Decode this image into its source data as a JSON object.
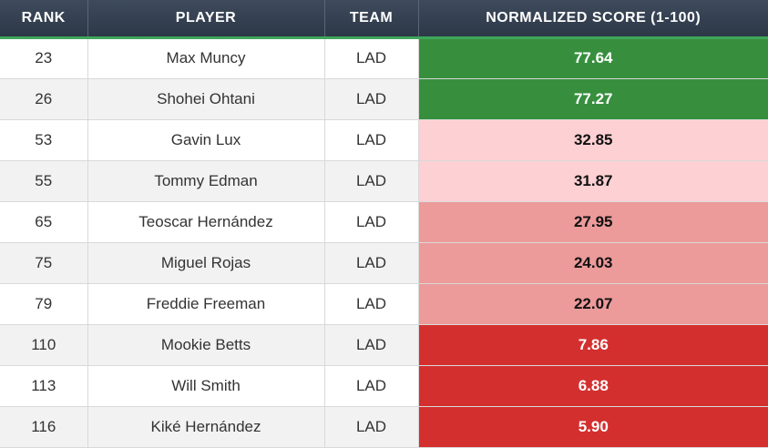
{
  "headers": {
    "rank": "RANK",
    "player": "PLAYER",
    "team": "TEAM",
    "score": "NORMALIZED SCORE (1-100)"
  },
  "tier_colors": {
    "green": "#378f3e",
    "lightpink": "#fdd0d3",
    "pink": "#ec9a9a",
    "red": "#d42f2f"
  },
  "rows": [
    {
      "rank": "23",
      "player": "Max Muncy",
      "team": "LAD",
      "score": "77.64",
      "tier": "green"
    },
    {
      "rank": "26",
      "player": "Shohei Ohtani",
      "team": "LAD",
      "score": "77.27",
      "tier": "green"
    },
    {
      "rank": "53",
      "player": "Gavin Lux",
      "team": "LAD",
      "score": "32.85",
      "tier": "lightpink"
    },
    {
      "rank": "55",
      "player": "Tommy Edman",
      "team": "LAD",
      "score": "31.87",
      "tier": "lightpink"
    },
    {
      "rank": "65",
      "player": "Teoscar Hernández",
      "team": "LAD",
      "score": "27.95",
      "tier": "pink"
    },
    {
      "rank": "75",
      "player": "Miguel Rojas",
      "team": "LAD",
      "score": "24.03",
      "tier": "pink"
    },
    {
      "rank": "79",
      "player": "Freddie Freeman",
      "team": "LAD",
      "score": "22.07",
      "tier": "pink"
    },
    {
      "rank": "110",
      "player": "Mookie Betts",
      "team": "LAD",
      "score": "7.86",
      "tier": "red"
    },
    {
      "rank": "113",
      "player": "Will Smith",
      "team": "LAD",
      "score": "6.88",
      "tier": "red"
    },
    {
      "rank": "116",
      "player": "Kiké Hernández",
      "team": "LAD",
      "score": "5.90",
      "tier": "red"
    }
  ]
}
